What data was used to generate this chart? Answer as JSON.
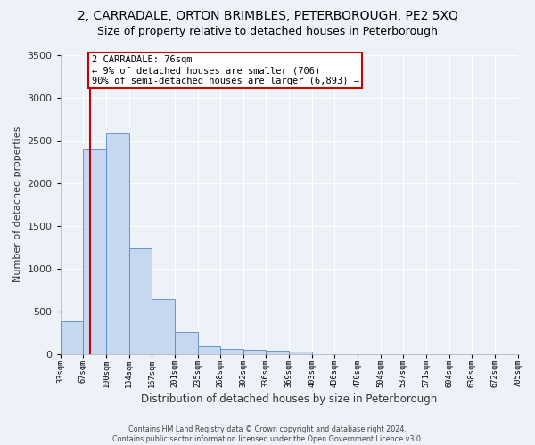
{
  "title": "2, CARRADALE, ORTON BRIMBLES, PETERBOROUGH, PE2 5XQ",
  "subtitle": "Size of property relative to detached houses in Peterborough",
  "xlabel": "Distribution of detached houses by size in Peterborough",
  "ylabel": "Number of detached properties",
  "bar_values": [
    390,
    2400,
    2590,
    1240,
    640,
    255,
    90,
    60,
    55,
    45,
    30,
    0,
    0,
    0,
    0,
    0,
    0,
    0,
    0,
    0
  ],
  "categories": [
    "33sqm",
    "67sqm",
    "100sqm",
    "134sqm",
    "167sqm",
    "201sqm",
    "235sqm",
    "268sqm",
    "302sqm",
    "336sqm",
    "369sqm",
    "403sqm",
    "436sqm",
    "470sqm",
    "504sqm",
    "537sqm",
    "571sqm",
    "604sqm",
    "638sqm",
    "672sqm"
  ],
  "n_total_ticks": 21,
  "last_tick_label": "705sqm",
  "bar_color": "#c5d8f0",
  "bar_edge_color": "#5588cc",
  "ylim_max": 3500,
  "ytick_step": 500,
  "red_line_x": 1.28,
  "annotation_text": "2 CARRADALE: 76sqm\n← 9% of detached houses are smaller (706)\n90% of semi-detached houses are larger (6,893) →",
  "annotation_box_facecolor": "#ffffff",
  "annotation_box_edgecolor": "#cc0000",
  "bg_color": "#edf2f9",
  "grid_color": "#ffffff",
  "title_fontsize": 10,
  "subtitle_fontsize": 9,
  "footer_line1": "Contains HM Land Registry data © Crown copyright and database right 2024.",
  "footer_line2": "Contains public sector information licensed under the Open Government Licence v3.0."
}
